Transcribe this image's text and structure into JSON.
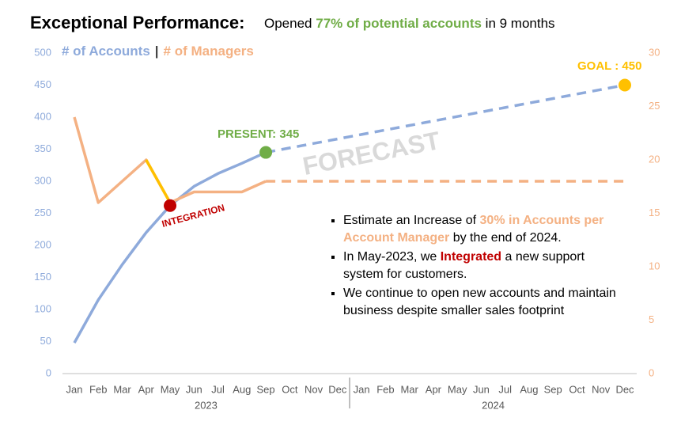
{
  "chart_data": {
    "type": "line",
    "title": "Exceptional Performance:",
    "subtitle_parts": [
      {
        "text": "Opened "
      },
      {
        "text": "77% of potential accounts",
        "color": "#70ad47",
        "bold": true
      },
      {
        "text": " in 9 months"
      }
    ],
    "legend_parts": [
      {
        "text": "# of Accounts",
        "color": "#8eaadb"
      },
      {
        "text": "|",
        "color": "#404040"
      },
      {
        "text": "# of Managers",
        "color": "#f4b183"
      }
    ],
    "categories": [
      "Jan",
      "Feb",
      "Mar",
      "Apr",
      "May",
      "Jun",
      "Jul",
      "Aug",
      "Sep",
      "Oct",
      "Nov",
      "Dec",
      "Jan",
      "Feb",
      "Mar",
      "Apr",
      "May",
      "Jun",
      "Jul",
      "Aug",
      "Sep",
      "Oct",
      "Nov",
      "Dec"
    ],
    "years": [
      "2023",
      "2024"
    ],
    "ylim": [
      0,
      500
    ],
    "yticks": [
      0,
      50,
      100,
      150,
      200,
      250,
      300,
      350,
      400,
      450,
      500
    ],
    "y2lim": [
      0,
      30
    ],
    "y2ticks": [
      0,
      5,
      10,
      15,
      20,
      25,
      30
    ],
    "series": [
      {
        "color": "#8eaadb",
        "values": [
          48,
          115,
          170,
          220,
          262,
          292,
          312,
          328,
          345,
          null,
          null,
          null,
          null,
          null,
          null,
          null,
          null,
          null,
          null,
          null,
          null,
          null,
          null,
          null
        ]
      },
      {
        "color": "#8eaadb",
        "dashed": true,
        "values": [
          null,
          null,
          null,
          null,
          null,
          null,
          null,
          null,
          345,
          352,
          359,
          366,
          373,
          380,
          387,
          394,
          401,
          408,
          415,
          422,
          429,
          436,
          443,
          450
        ]
      },
      {
        "color": "#f4b183",
        "axis": "y2",
        "values": [
          24,
          16,
          18,
          20,
          16,
          17,
          17,
          17,
          18,
          null,
          null,
          null,
          null,
          null,
          null,
          null,
          null,
          null,
          null,
          null,
          null,
          null,
          null,
          null
        ]
      },
      {
        "color": "#f4b183",
        "axis": "y2",
        "dashed": true,
        "values": [
          null,
          null,
          null,
          null,
          null,
          null,
          null,
          null,
          18,
          18,
          18,
          18,
          18,
          18,
          18,
          18,
          18,
          18,
          18,
          18,
          18,
          18,
          18,
          18
        ]
      },
      {
        "color": "#ffc000",
        "axis": "y2",
        "values": [
          null,
          null,
          null,
          20,
          16,
          null,
          null,
          null,
          null,
          null,
          null,
          null,
          null,
          null,
          null,
          null,
          null,
          null,
          null,
          null,
          null,
          null,
          null,
          null
        ]
      }
    ],
    "annotations": [
      {
        "text": "INTEGRATION",
        "color": "#c00000"
      },
      {
        "text": "PRESENT: 345",
        "color": "#70ad47"
      },
      {
        "text": "GOAL : 450",
        "color": "#ffc000"
      }
    ],
    "watermark": "FORECAST",
    "bullets": [
      [
        {
          "text": "Estimate an Increase of "
        },
        {
          "text": "30% in Accounts per Account Manager",
          "color": "#f4b183",
          "bold": true
        },
        {
          "text": " by the end of 2024."
        }
      ],
      [
        {
          "text": "In May-2023, we "
        },
        {
          "text": "Integrated",
          "color": "#c00000",
          "bold": true
        },
        {
          "text": " a new support system for customers."
        }
      ],
      [
        {
          "text": "We continue to open new accounts and maintain business despite smaller sales footprint"
        }
      ]
    ]
  }
}
